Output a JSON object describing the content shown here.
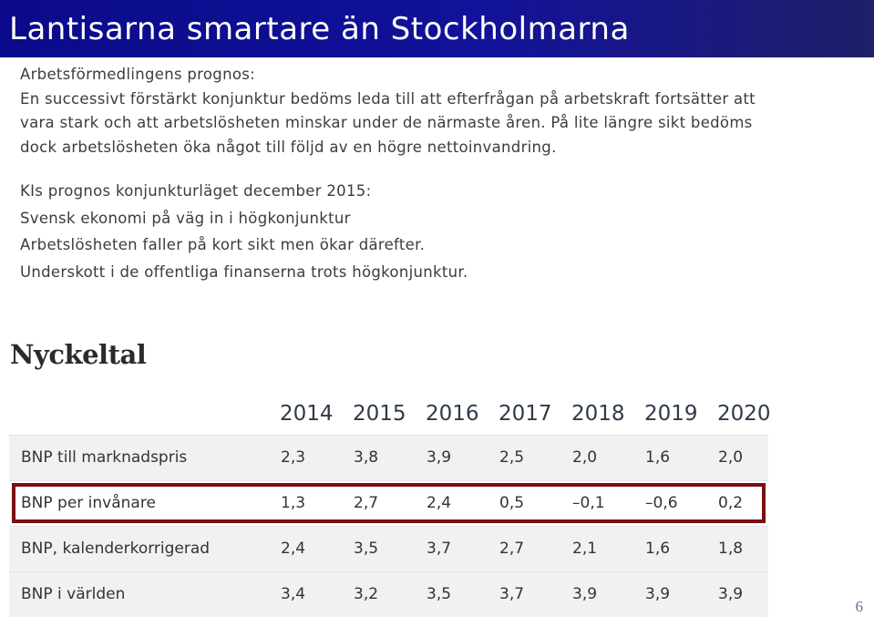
{
  "title": "Lantisarna smartare än Stockholmarna",
  "af": {
    "heading": "Arbetsförmedlingens prognos:",
    "lines": [
      "En successivt förstärkt konjunktur bedöms leda till att efterfrågan på arbetskraft fortsätter att",
      "vara stark och att arbetslösheten minskar under de närmaste åren. På lite längre sikt bedöms",
      "dock arbetslösheten öka något till följd av en högre nettoinvandring."
    ]
  },
  "ki": {
    "heading": "KIs prognos konjunkturläget december 2015:",
    "lines": [
      "Svensk ekonomi på väg in i högkonjunktur",
      "Arbetslösheten faller på kort sikt men ökar därefter.",
      "Underskott i de offentliga finanserna trots högkonjunktur."
    ]
  },
  "table": {
    "title": "Nyckeltal",
    "years": [
      "2014",
      "2015",
      "2016",
      "2017",
      "2018",
      "2019",
      "2020"
    ],
    "rows": [
      {
        "label": "BNP till marknadspris",
        "values": [
          "2,3",
          "3,8",
          "3,9",
          "2,5",
          "2,0",
          "1,6",
          "2,0"
        ]
      },
      {
        "label": "BNP per invånare",
        "values": [
          "1,3",
          "2,7",
          "2,4",
          "0,5",
          "–0,1",
          "–0,6",
          "0,2"
        ]
      },
      {
        "label": "BNP, kalenderkorrigerad",
        "values": [
          "2,4",
          "3,5",
          "3,7",
          "2,7",
          "2,1",
          "1,6",
          "1,8"
        ]
      },
      {
        "label": "BNP i världen",
        "values": [
          "3,4",
          "3,2",
          "3,5",
          "3,7",
          "3,9",
          "3,9",
          "3,9"
        ]
      }
    ]
  },
  "page_number": "6",
  "colors": {
    "title_bar": "#0a0a8a",
    "highlight_border": "#7a0f14"
  }
}
